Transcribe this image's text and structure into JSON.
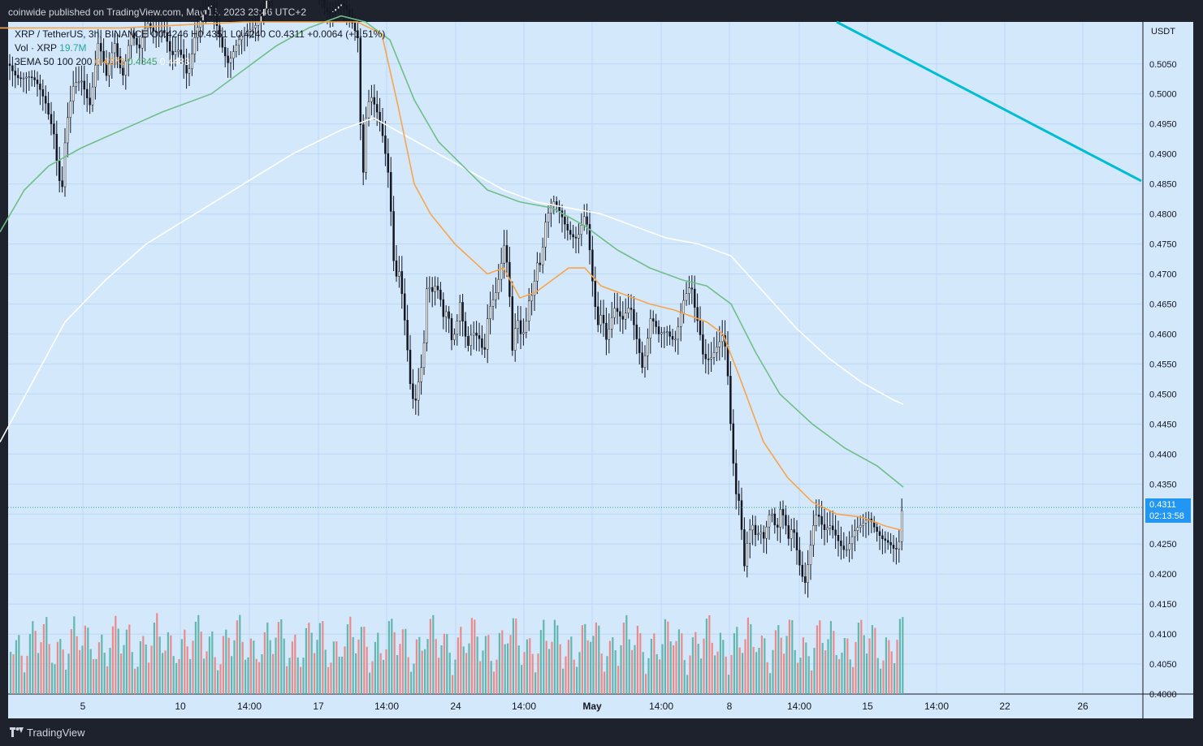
{
  "header": {
    "publisher": "coinwide published on TradingView.com, May 16, 2023 23:46 UTC+2"
  },
  "legend": {
    "symbol_text": "XRP / TetherUS, 3h, BINANCE",
    "ohlc_text": "O0.4246  H0.4351  L0.4240  C0.4311",
    "change_text": "+0.0064 (+1.51%)",
    "vol_label": "Vol · XRP",
    "vol_value": "19.7M",
    "ema_label": "3EMA  50  100  200",
    "ema_values": [
      "0.4273",
      "0.4345",
      "0.4483"
    ]
  },
  "footer": {
    "brand": "TradingView"
  },
  "colors": {
    "background": "#d4e8fc",
    "grid": "#bcd8f6",
    "up": "#26a69a",
    "down": "#ef5350",
    "vol_up": "#62b7ae",
    "vol_down": "#ea8b8b",
    "ema50": "#f7a54a",
    "ema100": "#6fbf87",
    "ema200": "#ffffff",
    "trendline": "#00bcd4",
    "price_tag": "#2196f3"
  },
  "chart_data": {
    "type": "candlestick",
    "symbol": "XRP / TetherUS",
    "timeframe": "3h",
    "exchange": "BINANCE",
    "unit": "USDT",
    "ylim": [
      0.4,
      0.512
    ],
    "y_ticks": [
      "0.5050",
      "0.5000",
      "0.4950",
      "0.4900",
      "0.4850",
      "0.4800",
      "0.4750",
      "0.4700",
      "0.4650",
      "0.4600",
      "0.4550",
      "0.4500",
      "0.4450",
      "0.4400",
      "0.4350",
      "0.4300",
      "0.4250",
      "0.4200",
      "0.4150",
      "0.4100",
      "0.4050",
      "0.4000"
    ],
    "x_ticks": [
      "5",
      "10",
      "14:00",
      "17",
      "14:00",
      "24",
      "14:00",
      "May",
      "14:00",
      "8",
      "14:00",
      "15",
      "14:00",
      "22",
      "26"
    ],
    "last_price": "0.4311",
    "countdown": "02:13:58",
    "series_points": [
      [
        0,
        0.506
      ],
      [
        30,
        0.503
      ],
      [
        55,
        0.499
      ],
      [
        65,
        0.495
      ],
      [
        70,
        0.488
      ],
      [
        75,
        0.483
      ],
      [
        80,
        0.493
      ],
      [
        90,
        0.501
      ],
      [
        100,
        0.503
      ],
      [
        110,
        0.499
      ],
      [
        120,
        0.508
      ],
      [
        130,
        0.502
      ],
      [
        140,
        0.509
      ],
      [
        150,
        0.504
      ],
      [
        160,
        0.51
      ],
      [
        170,
        0.506
      ],
      [
        180,
        0.512
      ],
      [
        200,
        0.511
      ],
      [
        210,
        0.505
      ],
      [
        220,
        0.507
      ],
      [
        230,
        0.504
      ],
      [
        240,
        0.511
      ],
      [
        260,
        0.514
      ],
      [
        280,
        0.506
      ],
      [
        300,
        0.509
      ],
      [
        320,
        0.514
      ],
      [
        340,
        0.519
      ],
      [
        360,
        0.522
      ],
      [
        380,
        0.52
      ],
      [
        400,
        0.515
      ],
      [
        420,
        0.514
      ],
      [
        440,
        0.51
      ],
      [
        445,
        0.485
      ],
      [
        450,
        0.498
      ],
      [
        455,
        0.5
      ],
      [
        465,
        0.495
      ],
      [
        470,
        0.492
      ],
      [
        478,
        0.486
      ],
      [
        485,
        0.47
      ],
      [
        490,
        0.472
      ],
      [
        495,
        0.466
      ],
      [
        500,
        0.458
      ],
      [
        505,
        0.449
      ],
      [
        510,
        0.447
      ],
      [
        515,
        0.452
      ],
      [
        520,
        0.456
      ],
      [
        525,
        0.47
      ],
      [
        530,
        0.468
      ],
      [
        535,
        0.469
      ],
      [
        540,
        0.467
      ],
      [
        545,
        0.462
      ],
      [
        550,
        0.463
      ],
      [
        555,
        0.458
      ],
      [
        560,
        0.46
      ],
      [
        565,
        0.466
      ],
      [
        570,
        0.462
      ],
      [
        575,
        0.459
      ],
      [
        580,
        0.461
      ],
      [
        590,
        0.458
      ],
      [
        595,
        0.455
      ],
      [
        600,
        0.463
      ],
      [
        610,
        0.468
      ],
      [
        620,
        0.476
      ],
      [
        625,
        0.47
      ],
      [
        630,
        0.456
      ],
      [
        635,
        0.462
      ],
      [
        640,
        0.459
      ],
      [
        645,
        0.46
      ],
      [
        650,
        0.466
      ],
      [
        655,
        0.468
      ],
      [
        660,
        0.473
      ],
      [
        665,
        0.472
      ],
      [
        670,
        0.478
      ],
      [
        680,
        0.481
      ],
      [
        690,
        0.48
      ],
      [
        700,
        0.478
      ],
      [
        710,
        0.476
      ],
      [
        720,
        0.479
      ],
      [
        725,
        0.473
      ],
      [
        730,
        0.466
      ],
      [
        735,
        0.462
      ],
      [
        740,
        0.465
      ],
      [
        745,
        0.46
      ],
      [
        755,
        0.464
      ],
      [
        765,
        0.461
      ],
      [
        775,
        0.465
      ],
      [
        785,
        0.459
      ],
      [
        790,
        0.455
      ],
      [
        795,
        0.458
      ],
      [
        800,
        0.462
      ],
      [
        810,
        0.459
      ],
      [
        820,
        0.461
      ],
      [
        830,
        0.46
      ],
      [
        840,
        0.465
      ],
      [
        850,
        0.467
      ],
      [
        855,
        0.463
      ],
      [
        860,
        0.461
      ],
      [
        865,
        0.457
      ],
      [
        875,
        0.457
      ],
      [
        885,
        0.458
      ],
      [
        890,
        0.459
      ],
      [
        895,
        0.452
      ],
      [
        900,
        0.441
      ],
      [
        905,
        0.434
      ],
      [
        910,
        0.433
      ],
      [
        915,
        0.422
      ],
      [
        920,
        0.427
      ],
      [
        925,
        0.428
      ],
      [
        930,
        0.425
      ],
      [
        935,
        0.426
      ],
      [
        940,
        0.425
      ],
      [
        945,
        0.43
      ],
      [
        950,
        0.431
      ],
      [
        955,
        0.428
      ],
      [
        960,
        0.432
      ],
      [
        965,
        0.429
      ],
      [
        970,
        0.425
      ],
      [
        975,
        0.427
      ],
      [
        980,
        0.423
      ],
      [
        985,
        0.42
      ],
      [
        990,
        0.419
      ],
      [
        995,
        0.424
      ],
      [
        1000,
        0.429
      ],
      [
        1005,
        0.431
      ],
      [
        1010,
        0.428
      ],
      [
        1015,
        0.426
      ],
      [
        1020,
        0.427
      ],
      [
        1030,
        0.426
      ],
      [
        1040,
        0.425
      ],
      [
        1050,
        0.427
      ],
      [
        1060,
        0.427
      ],
      [
        1070,
        0.429
      ],
      [
        1080,
        0.428
      ],
      [
        1090,
        0.426
      ],
      [
        1100,
        0.423
      ],
      [
        1105,
        0.423
      ],
      [
        1110,
        0.4311
      ]
    ],
    "ema50": [
      [
        0,
        0.511
      ],
      [
        150,
        0.511
      ],
      [
        300,
        0.512
      ],
      [
        440,
        0.512
      ],
      [
        470,
        0.51
      ],
      [
        490,
        0.498
      ],
      [
        510,
        0.485
      ],
      [
        530,
        0.48
      ],
      [
        560,
        0.475
      ],
      [
        600,
        0.47
      ],
      [
        620,
        0.471
      ],
      [
        640,
        0.466
      ],
      [
        660,
        0.467
      ],
      [
        680,
        0.469
      ],
      [
        700,
        0.471
      ],
      [
        720,
        0.471
      ],
      [
        740,
        0.468
      ],
      [
        760,
        0.467
      ],
      [
        780,
        0.466
      ],
      [
        800,
        0.465
      ],
      [
        830,
        0.464
      ],
      [
        850,
        0.463
      ],
      [
        870,
        0.462
      ],
      [
        890,
        0.46
      ],
      [
        910,
        0.453
      ],
      [
        940,
        0.442
      ],
      [
        970,
        0.436
      ],
      [
        1000,
        0.432
      ],
      [
        1030,
        0.43
      ],
      [
        1060,
        0.4295
      ],
      [
        1090,
        0.428
      ],
      [
        1110,
        0.4273
      ]
    ],
    "ema100": [
      [
        0,
        0.477
      ],
      [
        30,
        0.484
      ],
      [
        60,
        0.488
      ],
      [
        100,
        0.491
      ],
      [
        150,
        0.494
      ],
      [
        200,
        0.497
      ],
      [
        260,
        0.5
      ],
      [
        300,
        0.504
      ],
      [
        340,
        0.508
      ],
      [
        380,
        0.511
      ],
      [
        420,
        0.513
      ],
      [
        450,
        0.512
      ],
      [
        480,
        0.509
      ],
      [
        510,
        0.499
      ],
      [
        540,
        0.492
      ],
      [
        570,
        0.488
      ],
      [
        600,
        0.484
      ],
      [
        640,
        0.482
      ],
      [
        680,
        0.481
      ],
      [
        720,
        0.478
      ],
      [
        760,
        0.474
      ],
      [
        800,
        0.471
      ],
      [
        840,
        0.469
      ],
      [
        870,
        0.468
      ],
      [
        900,
        0.465
      ],
      [
        930,
        0.457
      ],
      [
        960,
        0.45
      ],
      [
        1000,
        0.445
      ],
      [
        1040,
        0.441
      ],
      [
        1080,
        0.438
      ],
      [
        1112,
        0.4345
      ]
    ],
    "ema200": [
      [
        0,
        0.442
      ],
      [
        40,
        0.452
      ],
      [
        80,
        0.462
      ],
      [
        130,
        0.469
      ],
      [
        180,
        0.475
      ],
      [
        240,
        0.48
      ],
      [
        300,
        0.485
      ],
      [
        360,
        0.49
      ],
      [
        420,
        0.494
      ],
      [
        460,
        0.496
      ],
      [
        500,
        0.493
      ],
      [
        540,
        0.49
      ],
      [
        580,
        0.487
      ],
      [
        620,
        0.484
      ],
      [
        660,
        0.482
      ],
      [
        700,
        0.481
      ],
      [
        740,
        0.48
      ],
      [
        780,
        0.478
      ],
      [
        820,
        0.476
      ],
      [
        860,
        0.475
      ],
      [
        900,
        0.473
      ],
      [
        940,
        0.467
      ],
      [
        980,
        0.461
      ],
      [
        1020,
        0.456
      ],
      [
        1060,
        0.452
      ],
      [
        1100,
        0.449
      ],
      [
        1112,
        0.4483
      ]
    ],
    "trendline": [
      [
        1030,
        0.512
      ],
      [
        1405,
        0.4855
      ]
    ],
    "volume_heights": [
      0.18,
      0.12,
      0.08,
      0.1,
      0.07,
      0.05,
      0.11,
      0.06,
      0.09,
      0.14,
      0.05,
      0.08,
      0.06,
      0.12,
      0.07,
      0.1,
      0.04,
      0.08,
      0.06,
      0.13,
      0.05,
      0.09,
      0.07,
      0.11,
      0.06,
      0.08,
      0.05,
      0.07,
      0.04,
      0.06
    ]
  }
}
